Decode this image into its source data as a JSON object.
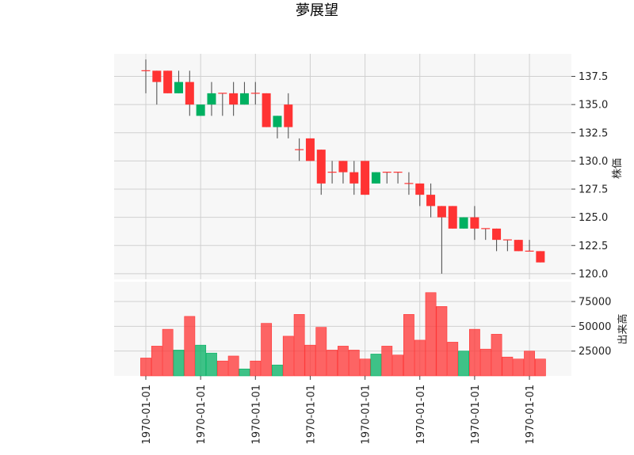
{
  "chart_data": [
    {
      "type": "candlestick",
      "title": "夢展望",
      "ylabel": "株価",
      "ylim": [
        119.5,
        139.5
      ],
      "yticks": [
        "120.0",
        "122.5",
        "125.0",
        "127.5",
        "130.0",
        "132.5",
        "135.0",
        "137.5"
      ],
      "grid": true,
      "up_color": "#00b061",
      "down_color": "#ff3333",
      "candles": [
        {
          "open": 138,
          "high": 139,
          "low": 136,
          "close": 138
        },
        {
          "open": 138,
          "high": 138,
          "low": 135,
          "close": 137
        },
        {
          "open": 138,
          "high": 138,
          "low": 136,
          "close": 136
        },
        {
          "open": 136,
          "high": 138,
          "low": 136,
          "close": 137
        },
        {
          "open": 137,
          "high": 138,
          "low": 134,
          "close": 135
        },
        {
          "open": 134,
          "high": 135,
          "low": 134,
          "close": 135
        },
        {
          "open": 135,
          "high": 137,
          "low": 134,
          "close": 136
        },
        {
          "open": 136,
          "high": 136,
          "low": 134,
          "close": 136
        },
        {
          "open": 136,
          "high": 137,
          "low": 134,
          "close": 135
        },
        {
          "open": 135,
          "high": 137,
          "low": 135,
          "close": 136
        },
        {
          "open": 136,
          "high": 137,
          "low": 135,
          "close": 136
        },
        {
          "open": 136,
          "high": 136,
          "low": 133,
          "close": 133
        },
        {
          "open": 133,
          "high": 134,
          "low": 132,
          "close": 134
        },
        {
          "open": 135,
          "high": 136,
          "low": 132,
          "close": 133
        },
        {
          "open": 131,
          "high": 132,
          "low": 130,
          "close": 131
        },
        {
          "open": 132,
          "high": 132,
          "low": 130,
          "close": 130
        },
        {
          "open": 131,
          "high": 131,
          "low": 127,
          "close": 128
        },
        {
          "open": 129,
          "high": 130,
          "low": 128,
          "close": 129
        },
        {
          "open": 130,
          "high": 130,
          "low": 128,
          "close": 129
        },
        {
          "open": 129,
          "high": 130,
          "low": 127,
          "close": 128
        },
        {
          "open": 130,
          "high": 130,
          "low": 127,
          "close": 127
        },
        {
          "open": 128,
          "high": 129,
          "low": 128,
          "close": 129
        },
        {
          "open": 129,
          "high": 129,
          "low": 128,
          "close": 129
        },
        {
          "open": 129,
          "high": 129,
          "low": 128,
          "close": 129
        },
        {
          "open": 128,
          "high": 129,
          "low": 127,
          "close": 128
        },
        {
          "open": 128,
          "high": 128,
          "low": 126,
          "close": 127
        },
        {
          "open": 127,
          "high": 128,
          "low": 125,
          "close": 126
        },
        {
          "open": 126,
          "high": 126,
          "low": 120,
          "close": 125
        },
        {
          "open": 126,
          "high": 126,
          "low": 124,
          "close": 124
        },
        {
          "open": 124,
          "high": 125,
          "low": 124,
          "close": 125
        },
        {
          "open": 125,
          "high": 126,
          "low": 123,
          "close": 124
        },
        {
          "open": 124,
          "high": 124,
          "low": 123,
          "close": 124
        },
        {
          "open": 124,
          "high": 124,
          "low": 122,
          "close": 123
        },
        {
          "open": 123,
          "high": 123,
          "low": 122,
          "close": 123
        },
        {
          "open": 123,
          "high": 123,
          "low": 122,
          "close": 122
        },
        {
          "open": 122,
          "high": 123,
          "low": 122,
          "close": 122
        },
        {
          "open": 122,
          "high": 122,
          "low": 121,
          "close": 121
        }
      ]
    },
    {
      "type": "bar",
      "ylabel": "出来高",
      "ylim": [
        0,
        95000
      ],
      "yticks": [
        "25000",
        "50000",
        "75000"
      ],
      "x_tick_labels": [
        "1970-01-01",
        "1970-01-01",
        "1970-01-01",
        "1970-01-01",
        "1970-01-01",
        "1970-01-01",
        "1970-01-01",
        "1970-01-01"
      ],
      "values": [
        18000,
        30000,
        47000,
        26000,
        60000,
        31000,
        23000,
        15000,
        20000,
        7000,
        15000,
        53000,
        11000,
        40000,
        62000,
        31000,
        49000,
        26000,
        30000,
        26000,
        17000,
        22000,
        30000,
        21000,
        62000,
        36000,
        84000,
        70000,
        34000,
        25000,
        47000,
        27000,
        42000,
        19000,
        17000,
        25000,
        17000
      ],
      "up_color": "#00b061",
      "down_color": "#ff3333"
    }
  ]
}
